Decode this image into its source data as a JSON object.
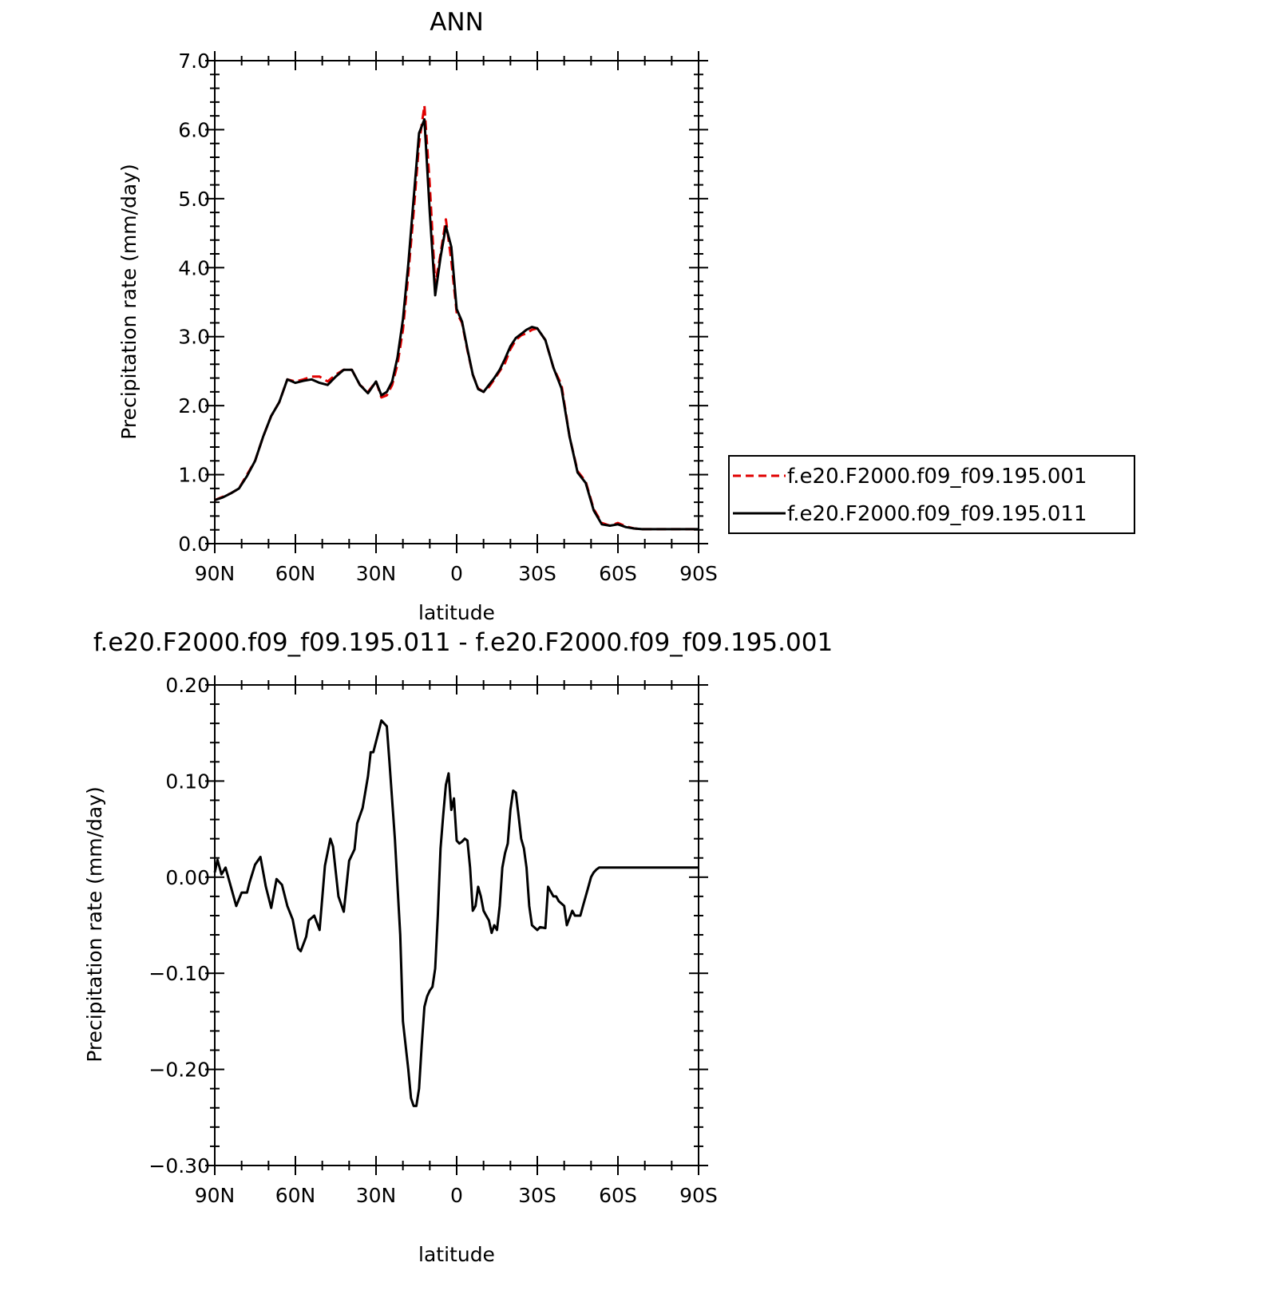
{
  "chart_data": [
    {
      "type": "line",
      "title": "ANN",
      "xlabel": "latitude",
      "ylabel": "Precipitation rate (mm/day)",
      "xlim": [
        90,
        -90
      ],
      "ylim": [
        0.0,
        7.0
      ],
      "x_ticks": [
        90,
        60,
        30,
        0,
        -30,
        -60,
        -90
      ],
      "x_tick_labels": [
        "90N",
        "60N",
        "30N",
        "0",
        "30S",
        "60S",
        "90S"
      ],
      "y_ticks": [
        0,
        1,
        2,
        3,
        4,
        5,
        6,
        7
      ],
      "y_tick_labels": [
        "0.0",
        "1.0",
        "2.0",
        "3.0",
        "4.0",
        "5.0",
        "6.0",
        "7.0"
      ],
      "legend": {
        "position": "right"
      },
      "series": [
        {
          "name": "f.e20.F2000.f09_f09.195.001",
          "color": "#e00000",
          "style": "dashed",
          "x": [
            90,
            87,
            84,
            81,
            78,
            75,
            72,
            69,
            66,
            63,
            60,
            57,
            54,
            51,
            48,
            45,
            42,
            39,
            36,
            33,
            30,
            28,
            26,
            24,
            22,
            20,
            18,
            16,
            14,
            12,
            10,
            8,
            6,
            4,
            2,
            0,
            -2,
            -4,
            -6,
            -8,
            -10,
            -12,
            -14,
            -16,
            -18,
            -20,
            -22,
            -24,
            -26,
            -28,
            -30,
            -33,
            -36,
            -39,
            -42,
            -45,
            -48,
            -51,
            -54,
            -57,
            -60,
            -63,
            -66,
            -69,
            -72,
            -75,
            -78,
            -81,
            -84,
            -87,
            -90
          ],
          "y": [
            0.63,
            0.68,
            0.73,
            0.8,
            1.0,
            1.2,
            1.55,
            1.85,
            2.05,
            2.38,
            2.35,
            2.38,
            2.42,
            2.42,
            2.35,
            2.45,
            2.52,
            2.52,
            2.3,
            2.2,
            2.35,
            2.12,
            2.15,
            2.3,
            2.6,
            3.1,
            3.9,
            4.8,
            5.8,
            6.35,
            5.2,
            3.75,
            4.2,
            4.7,
            4.1,
            3.35,
            3.2,
            2.8,
            2.45,
            2.25,
            2.2,
            2.27,
            2.38,
            2.5,
            2.62,
            2.82,
            2.95,
            3.02,
            3.05,
            3.1,
            3.12,
            2.95,
            2.55,
            2.3,
            1.55,
            1.05,
            0.9,
            0.5,
            0.3,
            0.26,
            0.3,
            0.25,
            0.22,
            0.21,
            0.21,
            0.21,
            0.21,
            0.21,
            0.21,
            0.21,
            0.21
          ]
        },
        {
          "name": "f.e20.F2000.f09_f09.195.011",
          "color": "#000000",
          "style": "solid",
          "x": [
            90,
            87,
            84,
            81,
            78,
            75,
            72,
            69,
            66,
            63,
            60,
            57,
            54,
            51,
            48,
            45,
            42,
            39,
            36,
            33,
            30,
            28,
            26,
            24,
            22,
            20,
            18,
            16,
            14,
            12,
            10,
            8,
            6,
            4,
            2,
            0,
            -2,
            -4,
            -6,
            -8,
            -10,
            -12,
            -14,
            -16,
            -18,
            -20,
            -22,
            -24,
            -26,
            -28,
            -30,
            -33,
            -36,
            -39,
            -42,
            -45,
            -48,
            -51,
            -54,
            -57,
            -60,
            -63,
            -66,
            -69,
            -72,
            -75,
            -78,
            -81,
            -84,
            -87,
            -90
          ],
          "y": [
            0.63,
            0.67,
            0.73,
            0.8,
            0.98,
            1.2,
            1.55,
            1.85,
            2.05,
            2.38,
            2.33,
            2.36,
            2.38,
            2.33,
            2.3,
            2.42,
            2.52,
            2.52,
            2.3,
            2.18,
            2.35,
            2.15,
            2.2,
            2.35,
            2.7,
            3.25,
            4.05,
            5.0,
            5.95,
            6.15,
            4.8,
            3.6,
            4.15,
            4.6,
            4.3,
            3.4,
            3.22,
            2.82,
            2.45,
            2.24,
            2.2,
            2.3,
            2.4,
            2.52,
            2.68,
            2.86,
            2.98,
            3.04,
            3.1,
            3.14,
            3.12,
            2.95,
            2.55,
            2.25,
            1.55,
            1.03,
            0.88,
            0.48,
            0.28,
            0.26,
            0.28,
            0.24,
            0.22,
            0.21,
            0.21,
            0.21,
            0.21,
            0.21,
            0.21,
            0.21,
            0.21
          ]
        }
      ]
    },
    {
      "type": "line",
      "title": "f.e20.F2000.f09_f09.195.011 - f.e20.F2000.f09_f09.195.001",
      "xlabel": "latitude",
      "ylabel": "Precipitation rate (mm/day)",
      "xlim": [
        90,
        -90
      ],
      "ylim": [
        -0.3,
        0.2
      ],
      "x_ticks": [
        90,
        60,
        30,
        0,
        -30,
        -60,
        -90
      ],
      "x_tick_labels": [
        "90N",
        "60N",
        "30N",
        "0",
        "30S",
        "60S",
        "90S"
      ],
      "y_ticks": [
        -0.3,
        -0.2,
        -0.1,
        0,
        0.1,
        0.2
      ],
      "y_tick_labels": [
        "−0.30",
        "−0.20",
        "−0.10",
        "0.00",
        "0.10",
        "0.20"
      ],
      "series": [
        {
          "color": "#000000",
          "style": "solid",
          "x": [
            90,
            89,
            87.5,
            86,
            84,
            82,
            80,
            78,
            77,
            75,
            73,
            71,
            69,
            67,
            65,
            63,
            61,
            59,
            58,
            56,
            55,
            53,
            51,
            49,
            47,
            46,
            44,
            42,
            40,
            38,
            37,
            35,
            33,
            32,
            31,
            29,
            28,
            26,
            25,
            23,
            21,
            20,
            18,
            17,
            16,
            15,
            14,
            13,
            12,
            11,
            10,
            9,
            8,
            7,
            6,
            5,
            4,
            3,
            2,
            1,
            0,
            -1,
            -2,
            -3,
            -4,
            -5,
            -6,
            -7,
            -8,
            -9,
            -10,
            -11,
            -12,
            -13,
            -14,
            -15,
            -16,
            -17,
            -18,
            -19,
            -20,
            -21,
            -22,
            -23,
            -24,
            -25,
            -26,
            -27,
            -28,
            -30,
            -31,
            -33,
            -34,
            -36,
            -37,
            -38,
            -40,
            -41,
            -43,
            -44,
            -45,
            -46,
            -47,
            -48,
            -49,
            -50,
            -51,
            -52,
            -53,
            -55,
            -57,
            -58,
            -60,
            -61,
            -62,
            -63,
            -64,
            -65,
            -66,
            -67,
            -68,
            -69,
            -70,
            -71,
            -72,
            -73,
            -74,
            -75,
            -76,
            -77,
            -79,
            -80,
            -81,
            -83,
            -85,
            -86,
            -87,
            -88,
            -89,
            -90
          ],
          "y": [
            0.005,
            0.018,
            0.003,
            0.01,
            -0.01,
            -0.03,
            -0.016,
            -0.016,
            -0.005,
            0.013,
            0.021,
            -0.01,
            -0.032,
            -0.002,
            -0.008,
            -0.03,
            -0.044,
            -0.074,
            -0.077,
            -0.062,
            -0.045,
            -0.04,
            -0.055,
            0.012,
            0.04,
            0.032,
            -0.02,
            -0.036,
            0.017,
            0.029,
            0.056,
            0.072,
            0.105,
            0.13,
            0.13,
            0.152,
            0.163,
            0.157,
            0.12,
            0.04,
            -0.06,
            -0.15,
            -0.2,
            -0.23,
            -0.238,
            -0.238,
            -0.22,
            -0.175,
            -0.135,
            -0.124,
            -0.118,
            -0.114,
            -0.095,
            -0.04,
            0.03,
            0.065,
            0.096,
            0.108,
            0.07,
            0.082,
            0.038,
            0.035,
            0.037,
            0.04,
            0.038,
            0.01,
            -0.035,
            -0.03,
            -0.01,
            -0.02,
            -0.035,
            -0.04,
            -0.045,
            -0.058,
            -0.05,
            -0.055,
            -0.03,
            0.01,
            0.025,
            0.035,
            0.07,
            0.09,
            0.088,
            0.065,
            0.04,
            0.03,
            0.01,
            -0.03,
            -0.05,
            -0.055,
            -0.052,
            -0.053,
            -0.01,
            -0.02,
            -0.02,
            -0.025,
            -0.03,
            -0.05,
            -0.035,
            -0.04,
            -0.04,
            -0.04,
            -0.03,
            -0.02,
            -0.01,
            0.0,
            0.005,
            0.008,
            0.01,
            0.01,
            0.01,
            0.01,
            0.01,
            0.01,
            0.01,
            0.01,
            0.01,
            0.01,
            0.01,
            0.01,
            0.01,
            0.01,
            0.01,
            0.01,
            0.01,
            0.01,
            0.01,
            0.01,
            0.01,
            0.01,
            0.01,
            0.01,
            0.01,
            0.01,
            0.01,
            0.01,
            0.01,
            0.01,
            0.01,
            0.01
          ]
        }
      ]
    }
  ]
}
